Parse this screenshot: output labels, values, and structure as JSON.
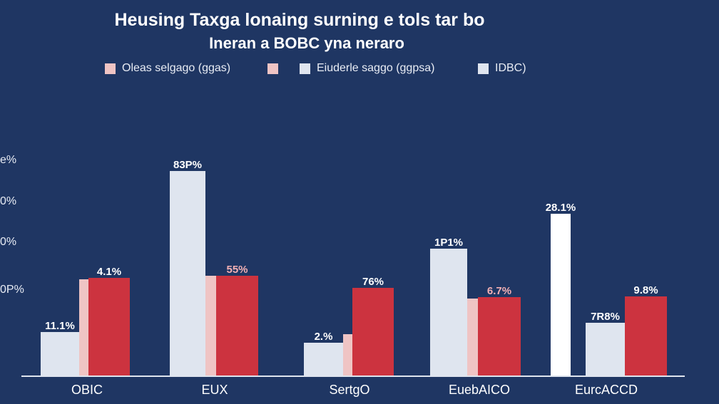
{
  "chart_data": {
    "type": "bar",
    "title": "Heusing Taxga lonaing surning e tols tar bo",
    "subtitle": "Ineran a BOBC yna neraro",
    "legend": [
      {
        "label": "Oleas selgago (ggas)",
        "color": "#efc4c4"
      },
      {
        "label": "",
        "color": "#efc4c4"
      },
      {
        "label": "Eiuderle saggo (ggpsa)",
        "color": "#dfe5ef"
      },
      {
        "label": "IDBC)",
        "color": "#dfe5ef"
      }
    ],
    "legend_position": "top",
    "ytick_labels": [
      "e%",
      "0%",
      "0%",
      "0P%"
    ],
    "ylim": [
      0,
      40
    ],
    "categories": [
      "OBIC",
      "EUX",
      "SertgO",
      "EuebAICO",
      "EurcACCD"
    ],
    "series": [
      {
        "name": "light",
        "color": "#dfe5ef",
        "values": [
          8.1,
          38.0,
          6.1,
          23.6,
          9.8
        ],
        "labels": [
          "11.1%",
          "83P%",
          "2.%",
          "1P1%",
          "7R8%"
        ]
      },
      {
        "name": "pink",
        "color": "#efc4c4",
        "values": [
          17.9,
          18.5,
          7.7,
          14.3,
          null
        ],
        "labels": [
          "",
          "",
          "",
          "",
          ""
        ]
      },
      {
        "name": "red",
        "color": "#cc333f",
        "values": [
          18.1,
          18.5,
          16.3,
          14.6,
          14.7
        ],
        "labels": [
          "4.1%",
          "55%",
          "76%",
          "6.7%",
          "9.8%"
        ]
      },
      {
        "name": "white",
        "color": "#ffffff",
        "values": [
          null,
          null,
          null,
          null,
          30.1
        ],
        "labels": [
          "",
          "",
          "",
          "",
          "28.1%"
        ]
      }
    ],
    "red_label_colors": [
      "#ffffff",
      "#f2b0b4",
      "#ffffff",
      "#f2b0b4",
      "#ffffff"
    ]
  }
}
